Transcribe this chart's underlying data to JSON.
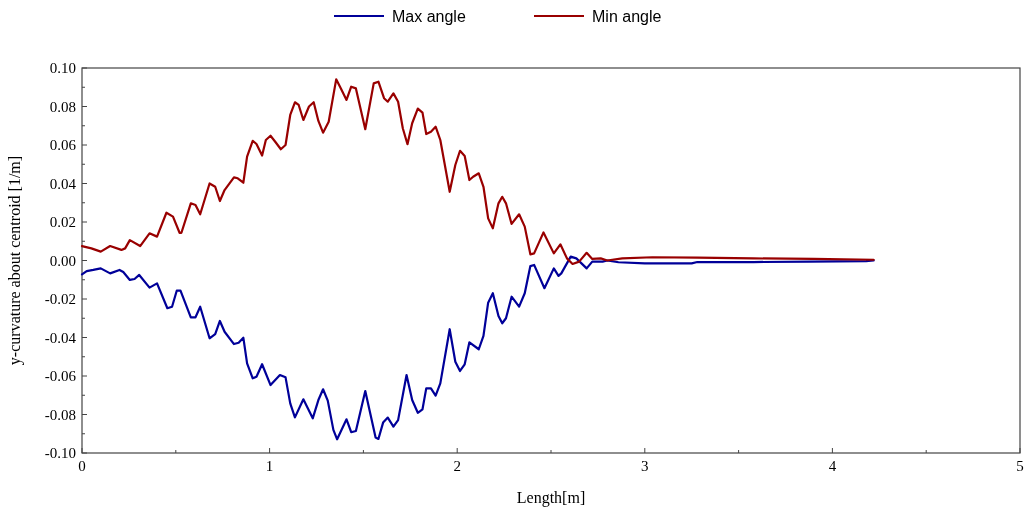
{
  "chart_data": {
    "type": "line",
    "xlabel": "Length[m]",
    "ylabel": "y-curvature about centroid [1/m]",
    "legend": "top",
    "line_style": "solid",
    "marker": "none",
    "grid": false,
    "xlim": [
      0,
      5
    ],
    "ylim": [
      -0.1,
      0.1
    ],
    "xticks": [
      0,
      {
        "value": 0.5,
        "label": null
      },
      1,
      {
        "value": 1.5,
        "label": null
      },
      2,
      {
        "value": 2.5,
        "label": null
      },
      3,
      {
        "value": 3.5,
        "label": null
      },
      4,
      {
        "value": 4.5,
        "label": null
      },
      5
    ],
    "yticks": [
      {
        "value": -0.1,
        "label": "-0.10"
      },
      {
        "value": -0.09,
        "label": null
      },
      {
        "value": -0.08,
        "label": "-0.08"
      },
      {
        "value": -0.07,
        "label": null
      },
      {
        "value": -0.06,
        "label": "-0.06"
      },
      {
        "value": -0.05,
        "label": null
      },
      {
        "value": -0.04,
        "label": "-0.04"
      },
      {
        "value": -0.03,
        "label": null
      },
      {
        "value": -0.02,
        "label": "-0.02"
      },
      {
        "value": -0.01,
        "label": null
      },
      {
        "value": 0,
        "label": "0.00"
      },
      {
        "value": 0.01,
        "label": null
      },
      {
        "value": 0.02,
        "label": "0.02"
      },
      {
        "value": 0.03,
        "label": null
      },
      {
        "value": 0.04,
        "label": "0.04"
      },
      {
        "value": 0.05,
        "label": null
      },
      {
        "value": 0.06,
        "label": "0.06"
      },
      {
        "value": 0.07,
        "label": null
      },
      {
        "value": 0.08,
        "label": "0.08"
      },
      {
        "value": 0.09,
        "label": null
      },
      {
        "value": 0.1,
        "label": "0.10"
      }
    ],
    "series": [
      {
        "name": "Max angle",
        "color": "#000099",
        "x": [
          0,
          0.025,
          0.06,
          0.1,
          0.15,
          0.2,
          0.22,
          0.255,
          0.28,
          0.305,
          0.36,
          0.4,
          0.455,
          0.48,
          0.505,
          0.525,
          0.58,
          0.605,
          0.63,
          0.68,
          0.71,
          0.735,
          0.76,
          0.81,
          0.835,
          0.86,
          0.88,
          0.91,
          0.93,
          0.96,
          1.005,
          1.055,
          1.085,
          1.11,
          1.135,
          1.18,
          1.23,
          1.26,
          1.285,
          1.31,
          1.34,
          1.36,
          1.41,
          1.435,
          1.46,
          1.51,
          1.565,
          1.58,
          1.605,
          1.63,
          1.66,
          1.685,
          1.73,
          1.76,
          1.79,
          1.815,
          1.835,
          1.86,
          1.885,
          1.91,
          1.96,
          1.99,
          2.015,
          2.04,
          2.065,
          2.115,
          2.14,
          2.165,
          2.19,
          2.22,
          2.24,
          2.26,
          2.29,
          2.33,
          2.36,
          2.39,
          2.41,
          2.465,
          2.515,
          2.54,
          2.555,
          2.605,
          2.635,
          2.69,
          2.72,
          2.775,
          2.8,
          2.86,
          3.0,
          3.25,
          3.28,
          3.58,
          3.88,
          4.18,
          4.22
        ],
        "values": [
          -0.0072,
          -0.0055,
          -0.0049,
          -0.0041,
          -0.0067,
          -0.0049,
          -0.006,
          -0.0101,
          -0.0096,
          -0.0075,
          -0.0141,
          -0.0119,
          -0.0248,
          -0.024,
          -0.0157,
          -0.0157,
          -0.0295,
          -0.0295,
          -0.024,
          -0.0404,
          -0.0382,
          -0.0314,
          -0.037,
          -0.0434,
          -0.0427,
          -0.0401,
          -0.0534,
          -0.0612,
          -0.0604,
          -0.0539,
          -0.0647,
          -0.0595,
          -0.0607,
          -0.0742,
          -0.0815,
          -0.0721,
          -0.082,
          -0.0725,
          -0.0669,
          -0.0728,
          -0.088,
          -0.0929,
          -0.0825,
          -0.0892,
          -0.0886,
          -0.0678,
          -0.092,
          -0.0927,
          -0.0842,
          -0.0816,
          -0.0863,
          -0.0829,
          -0.0595,
          -0.0725,
          -0.0791,
          -0.0773,
          -0.0664,
          -0.0664,
          -0.0702,
          -0.0638,
          -0.0357,
          -0.0526,
          -0.0574,
          -0.0539,
          -0.0425,
          -0.0461,
          -0.0392,
          -0.0219,
          -0.017,
          -0.0288,
          -0.0326,
          -0.03,
          -0.0188,
          -0.024,
          -0.017,
          -0.0029,
          -0.0023,
          -0.0144,
          -0.0041,
          -0.008,
          -0.0067,
          0.002,
          0.0011,
          -0.0041,
          -0.0006,
          -0.0006,
          0,
          -0.0009,
          -0.0015,
          -0.0015,
          -0.0008,
          -0.0008,
          -0.0006,
          -0.0003,
          0
        ]
      },
      {
        "name": "Min angle",
        "color": "#990000",
        "x": [
          0,
          0.05,
          0.1,
          0.15,
          0.21,
          0.23,
          0.255,
          0.31,
          0.36,
          0.4,
          0.45,
          0.485,
          0.52,
          0.53,
          0.58,
          0.605,
          0.63,
          0.68,
          0.71,
          0.735,
          0.76,
          0.81,
          0.83,
          0.86,
          0.88,
          0.91,
          0.93,
          0.96,
          0.98,
          1.005,
          1.03,
          1.06,
          1.085,
          1.11,
          1.135,
          1.155,
          1.18,
          1.21,
          1.235,
          1.26,
          1.285,
          1.315,
          1.355,
          1.38,
          1.41,
          1.435,
          1.46,
          1.51,
          1.555,
          1.58,
          1.61,
          1.63,
          1.66,
          1.685,
          1.71,
          1.735,
          1.76,
          1.79,
          1.815,
          1.835,
          1.86,
          1.885,
          1.91,
          1.96,
          1.99,
          2.015,
          2.04,
          2.065,
          2.085,
          2.115,
          2.14,
          2.165,
          2.19,
          2.22,
          2.24,
          2.26,
          2.29,
          2.33,
          2.36,
          2.39,
          2.41,
          2.46,
          2.515,
          2.55,
          2.585,
          2.615,
          2.65,
          2.69,
          2.72,
          2.765,
          2.8,
          2.88,
          3.04,
          3.28,
          3.58,
          3.9,
          4.22
        ],
        "values": [
          0.0075,
          0.0063,
          0.0046,
          0.0075,
          0.0055,
          0.0063,
          0.0106,
          0.0075,
          0.0141,
          0.0124,
          0.0248,
          0.0228,
          0.0144,
          0.0144,
          0.0297,
          0.0288,
          0.024,
          0.04,
          0.0383,
          0.0309,
          0.0366,
          0.0432,
          0.0427,
          0.0404,
          0.054,
          0.0622,
          0.0605,
          0.0545,
          0.0626,
          0.0648,
          0.0617,
          0.0578,
          0.06,
          0.0756,
          0.0822,
          0.0808,
          0.073,
          0.08,
          0.0822,
          0.0725,
          0.0664,
          0.0721,
          0.0941,
          0.0894,
          0.0834,
          0.0903,
          0.0894,
          0.0682,
          0.092,
          0.0929,
          0.0843,
          0.0825,
          0.0868,
          0.0825,
          0.0687,
          0.0604,
          0.0713,
          0.0789,
          0.0768,
          0.0657,
          0.0669,
          0.0695,
          0.0626,
          0.0357,
          0.0496,
          0.057,
          0.0543,
          0.0418,
          0.0435,
          0.0453,
          0.0383,
          0.0219,
          0.0167,
          0.0297,
          0.0331,
          0.0297,
          0.019,
          0.024,
          0.0176,
          0.0032,
          0.0037,
          0.0146,
          0.0037,
          0.0084,
          0.0011,
          -0.0018,
          -0.0006,
          0.004,
          0.0008,
          0.0011,
          0,
          0.0011,
          0.0017,
          0.0015,
          0.0011,
          0.0008,
          0.0004
        ]
      }
    ]
  }
}
